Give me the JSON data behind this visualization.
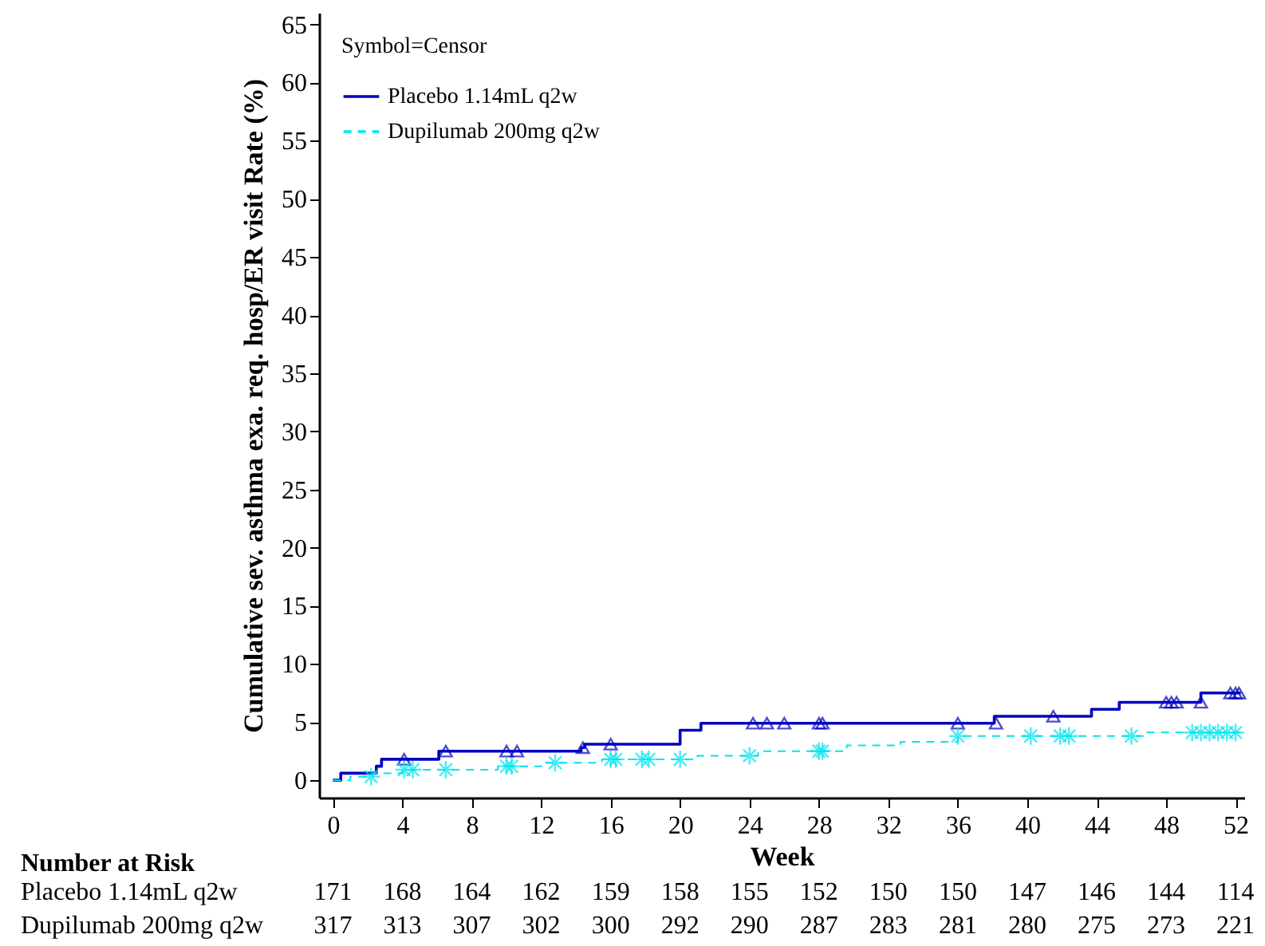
{
  "chart_data": {
    "type": "step",
    "xlabel": "Week",
    "ylabel": "Cumulative sev. asthma exa. req. hosp/ER visit Rate (%)",
    "legend_title": "Symbol=Censor",
    "legend": "top left",
    "xlim": [
      -0.8,
      52.5
    ],
    "xticks": [
      0,
      4,
      8,
      12,
      16,
      20,
      24,
      28,
      32,
      36,
      40,
      44,
      48,
      52
    ],
    "ylim": [
      -1.5,
      66
    ],
    "yticks": [
      0,
      5,
      10,
      15,
      20,
      25,
      30,
      35,
      40,
      45,
      50,
      55,
      60,
      65
    ],
    "series": [
      {
        "name": "Placebo 1.14mL q2w",
        "color": "#0000c0",
        "line_style": "solid",
        "x": [
          0,
          0.45,
          2.5,
          2.8,
          6.1,
          14.3,
          14.5,
          20,
          21.2,
          38.1,
          43.7,
          45.3,
          50,
          52.3
        ],
        "values": [
          0,
          0.6,
          1.2,
          1.8,
          2.5,
          2.8,
          3.1,
          4.3,
          4.9,
          5.5,
          6.1,
          6.7,
          7.5,
          7.5
        ]
      },
      {
        "name": "Dupilumab 200mg q2w",
        "color": "#00e5ee",
        "line_style": "dashed",
        "x": [
          0,
          1,
          2.3,
          4,
          9.5,
          12,
          15.5,
          21,
          24.5,
          29.6,
          32.7,
          36,
          46.9,
          52.3
        ],
        "values": [
          0,
          0.3,
          0.6,
          0.9,
          1.2,
          1.5,
          1.8,
          2.1,
          2.5,
          3.0,
          3.3,
          3.8,
          4.1,
          4.1
        ]
      },
      {
        "type": "scatter",
        "color": "#0000c0",
        "marker": "triangle",
        "x": [
          4.1,
          6.5,
          10,
          10.6,
          14.4,
          16,
          24.2,
          25,
          26,
          28,
          28.2,
          36,
          38.2,
          41.5,
          48,
          48.3,
          48.6,
          50,
          51.7,
          52,
          52.2
        ],
        "values": [
          1.8,
          2.5,
          2.5,
          2.5,
          2.8,
          3.1,
          4.9,
          4.9,
          4.9,
          4.9,
          4.9,
          4.9,
          4.9,
          5.5,
          6.7,
          6.7,
          6.7,
          6.7,
          7.5,
          7.5,
          7.5
        ]
      },
      {
        "type": "scatter",
        "color": "#00e5ee",
        "marker": "cross",
        "x": [
          2.2,
          4.1,
          4.6,
          6.5,
          10,
          10.3,
          12.8,
          16,
          16.3,
          17.8,
          18.2,
          20,
          24,
          28,
          28.2,
          36,
          40.2,
          41.9,
          42.4,
          46,
          49.5,
          50,
          50.5,
          51,
          51.5,
          52
        ],
        "values": [
          0.3,
          0.9,
          0.9,
          0.9,
          1.2,
          1.2,
          1.5,
          1.8,
          1.8,
          1.8,
          1.8,
          1.8,
          2.1,
          2.5,
          2.5,
          3.8,
          3.8,
          3.8,
          3.8,
          3.8,
          4.1,
          4.1,
          4.1,
          4.1,
          4.1,
          4.1
        ]
      }
    ],
    "annotations": [
      "Number at Risk",
      "Placebo 1.14mL q2w",
      "171",
      "168",
      "164",
      "162",
      "159",
      "158",
      "155",
      "152",
      "150",
      "150",
      "147",
      "146",
      "144",
      "114",
      "Dupilumab 200mg q2w",
      "317",
      "313",
      "307",
      "302",
      "300",
      "292",
      "290",
      "287",
      "283",
      "281",
      "280",
      "275",
      "273",
      "221"
    ]
  }
}
